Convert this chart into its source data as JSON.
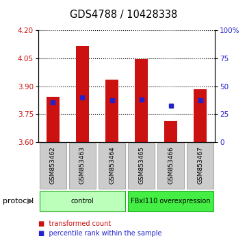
{
  "title": "GDS4788 / 10428338",
  "samples": [
    "GSM853462",
    "GSM853463",
    "GSM853464",
    "GSM853465",
    "GSM853466",
    "GSM853467"
  ],
  "bar_bottom": 3.6,
  "bar_tops": [
    3.845,
    4.115,
    3.935,
    4.045,
    3.715,
    3.885
  ],
  "percentile_values": [
    3.815,
    3.84,
    3.825,
    3.83,
    3.795,
    3.825
  ],
  "ylim": [
    3.6,
    4.2
  ],
  "yticks_left": [
    3.6,
    3.75,
    3.9,
    4.05,
    4.2
  ],
  "yticks_right": [
    0,
    25,
    50,
    75,
    100
  ],
  "bar_color": "#cc1111",
  "percentile_color": "#2222cc",
  "groups": [
    {
      "label": "control",
      "samples": [
        0,
        1,
        2
      ],
      "color": "#bbffbb"
    },
    {
      "label": "FBxl110 overexpression",
      "samples": [
        3,
        4,
        5
      ],
      "color": "#44ee44"
    }
  ],
  "protocol_label": "protocol",
  "legend_items": [
    {
      "label": "transformed count",
      "color": "#cc1111"
    },
    {
      "label": "percentile rank within the sample",
      "color": "#2222cc"
    }
  ],
  "bg_color": "#ffffff",
  "plot_area_bg": "#ffffff",
  "tick_label_color_left": "#cc1111",
  "tick_label_color_right": "#2222cc",
  "bar_width": 0.45,
  "sample_bg_color": "#cccccc",
  "sample_box_edge_color": "#aaaaaa"
}
